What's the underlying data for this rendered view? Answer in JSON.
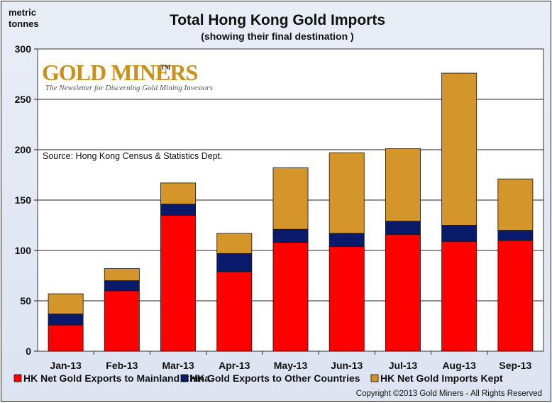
{
  "chart_data": {
    "type": "bar",
    "stacked": true,
    "title": "Total Hong Kong Gold Imports",
    "subtitle": "(showing their final destination )",
    "ylabel_line1": "metric",
    "ylabel_line2": "tonnes",
    "ylim": [
      0,
      300
    ],
    "yticks": [
      "0",
      "50",
      "100",
      "150",
      "200",
      "250",
      "300"
    ],
    "grid": true,
    "categories": [
      "Jan-13",
      "Feb-13",
      "Mar-13",
      "Apr-13",
      "May-13",
      "Jun-13",
      "Jul-13",
      "Aug-13",
      "Sep-13"
    ],
    "series": [
      {
        "name": "HK Net Gold Exports to Mainland China",
        "color": "#ff0000",
        "values": [
          26,
          60,
          135,
          79,
          108,
          104,
          116,
          109,
          110
        ]
      },
      {
        "name": "HK Gold Exports to Other Countries",
        "color": "#0a1a6a",
        "values": [
          11,
          10,
          11,
          18,
          13,
          13,
          13,
          16,
          10
        ]
      },
      {
        "name": "HK Net Gold Imports Kept",
        "color": "#d4952a",
        "values": [
          20,
          12,
          21,
          20,
          61,
          80,
          72,
          151,
          51
        ]
      }
    ],
    "legend_position": "bottom",
    "source": "Source:  Hong Kong Census  & Statistics Dept.",
    "copyright": "Copyright ©2013  Gold Miners - All Rights Reserved"
  },
  "logo": {
    "name": "GOLD MINERS",
    "trademark": "TM",
    "tagline": "The Newsletter for Discerning Gold Mining Investors"
  }
}
